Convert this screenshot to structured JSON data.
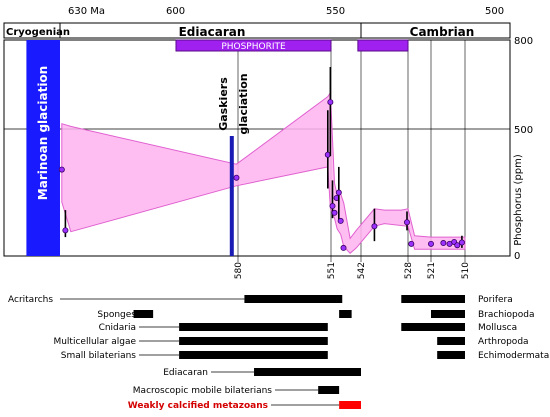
{
  "chart_data": {
    "type": "area",
    "x_unit": "Ma",
    "xlim": [
      640,
      500
    ],
    "ylim": [
      0,
      800
    ],
    "ylabel": "Phosphorus (ppm)",
    "top_axis_ticks": [
      {
        "value": 630,
        "label": "630 Ma"
      },
      {
        "value": 600,
        "label": "600"
      },
      {
        "value": 550,
        "label": "550"
      },
      {
        "value": 500,
        "label": "500"
      }
    ],
    "right_axis_ticks": [
      {
        "value": 800,
        "label": "800"
      },
      {
        "value": 500,
        "label": "500"
      },
      {
        "value": 0,
        "label": "0"
      }
    ],
    "bottom_ticks": [
      {
        "value": 580,
        "label": "580"
      },
      {
        "value": 551,
        "label": "551"
      },
      {
        "value": 542,
        "label": "542"
      },
      {
        "value": 528,
        "label": "528"
      },
      {
        "value": 521,
        "label": "521"
      },
      {
        "value": 510,
        "label": "510"
      }
    ],
    "periods": [
      {
        "name": "Cryogenian",
        "start": 640,
        "end": 635
      },
      {
        "name": "Ediacaran",
        "start": 635,
        "end": 542
      },
      {
        "name": "Cambrian",
        "start": 542,
        "end": 500
      }
    ],
    "phosphorite_label": "PHOSPHORITE",
    "phosphorite_intervals": [
      [
        600,
        551
      ],
      [
        543,
        528
      ]
    ],
    "glaciations": [
      {
        "label": "Marinoan glaciation",
        "start": 638,
        "end": 635,
        "color": "#1a1aff"
      },
      {
        "label_line1": "Gaskiers",
        "label_line2": "glaciation",
        "at": 582,
        "color": "#1a1ab4"
      }
    ],
    "envelope_upper": [
      [
        634.5,
        490
      ],
      [
        632,
        480
      ],
      [
        580.5,
        340
      ],
      [
        552,
        590
      ],
      [
        551.2,
        605
      ],
      [
        550.3,
        270
      ],
      [
        549.6,
        225
      ],
      [
        548.5,
        230
      ],
      [
        547.5,
        195
      ],
      [
        545.5,
        65
      ],
      [
        543.5,
        95
      ],
      [
        538,
        175
      ],
      [
        535,
        170
      ],
      [
        530,
        170
      ],
      [
        528,
        175
      ],
      [
        526,
        75
      ],
      [
        521,
        70
      ],
      [
        517,
        70
      ],
      [
        510,
        70
      ]
    ],
    "envelope_lower": [
      [
        510,
        25
      ],
      [
        517,
        25
      ],
      [
        521,
        25
      ],
      [
        526,
        25
      ],
      [
        528,
        110
      ],
      [
        535,
        120
      ],
      [
        538,
        110
      ],
      [
        543.5,
        30
      ],
      [
        545.5,
        10
      ],
      [
        547.5,
        35
      ],
      [
        548.5,
        80
      ],
      [
        549.6,
        100
      ],
      [
        550.3,
        140
      ],
      [
        551.2,
        175
      ],
      [
        552,
        330
      ],
      [
        580.5,
        260
      ],
      [
        632,
        90
      ],
      [
        634.5,
        200
      ]
    ],
    "points": [
      {
        "x": 634.5,
        "y": 320
      },
      {
        "x": 633.5,
        "y": 95,
        "err": [
          70,
          170
        ]
      },
      {
        "x": 580.5,
        "y": 290
      },
      {
        "x": 552,
        "y": 375,
        "err": [
          250,
          540
        ]
      },
      {
        "x": 551.2,
        "y": 570,
        "err": [
          370,
          700
        ]
      },
      {
        "x": 550.7,
        "y": 185,
        "err": [
          140,
          280
        ]
      },
      {
        "x": 550.3,
        "y": 160
      },
      {
        "x": 549.8,
        "y": 215
      },
      {
        "x": 549.1,
        "y": 235,
        "err": [
          135,
          330
        ]
      },
      {
        "x": 548.5,
        "y": 130
      },
      {
        "x": 547.6,
        "y": 30
      },
      {
        "x": 538,
        "y": 110,
        "err": [
          55,
          175
        ]
      },
      {
        "x": 528.3,
        "y": 125,
        "err": [
          95,
          165
        ]
      },
      {
        "x": 527,
        "y": 45
      },
      {
        "x": 521,
        "y": 45
      },
      {
        "x": 517,
        "y": 48
      },
      {
        "x": 515,
        "y": 45
      },
      {
        "x": 513.5,
        "y": 52
      },
      {
        "x": 512.5,
        "y": 40
      },
      {
        "x": 511,
        "y": 50,
        "err": [
          30,
          75
        ]
      }
    ],
    "taxa": [
      {
        "label": "Acritarchs",
        "side": "left",
        "intervals": [
          [
            578,
            551
          ],
          [
            550.5,
            548
          ],
          [
            551,
            549
          ]
        ],
        "row": 0
      },
      {
        "label": "Sponges",
        "side": "left",
        "intervals": [
          [
            613,
            607
          ],
          [
            549,
            545
          ]
        ],
        "row": 1
      },
      {
        "label": "Cnidaria",
        "side": "left",
        "intervals": [
          [
            599,
            552
          ]
        ],
        "row": 2
      },
      {
        "label": "Multicellular algae",
        "side": "left",
        "intervals": [
          [
            599,
            552
          ]
        ],
        "row": 3
      },
      {
        "label": "Small bilaterians",
        "side": "left",
        "intervals": [
          [
            599,
            552
          ]
        ],
        "row": 4
      },
      {
        "label": "Ediacaran",
        "side": "center",
        "intervals": [
          [
            575,
            542
          ],
          [
            556,
            543
          ]
        ],
        "row": 5
      },
      {
        "label": "Macroscopic mobile bilaterians",
        "side": "center",
        "intervals": [
          [
            555,
            549
          ]
        ],
        "row": 6
      },
      {
        "label": "Weakly calcified metazoans",
        "side": "center",
        "intervals": [
          [
            549,
            542
          ]
        ],
        "row": 7,
        "color": "#ff0000"
      },
      {
        "label": "Porifera",
        "side": "right",
        "intervals": [
          [
            530,
            510
          ]
        ],
        "row": 0
      },
      {
        "label": "Brachiopoda",
        "side": "right",
        "intervals": [
          [
            521,
            510
          ]
        ],
        "row": 1
      },
      {
        "label": "Mollusca",
        "side": "right",
        "intervals": [
          [
            530,
            510
          ]
        ],
        "row": 2
      },
      {
        "label": "Arthropoda",
        "side": "right",
        "intervals": [
          [
            519,
            510
          ]
        ],
        "row": 3
      },
      {
        "label": "Echimodermata",
        "side": "right",
        "intervals": [
          [
            519,
            510
          ]
        ],
        "row": 4
      }
    ]
  }
}
